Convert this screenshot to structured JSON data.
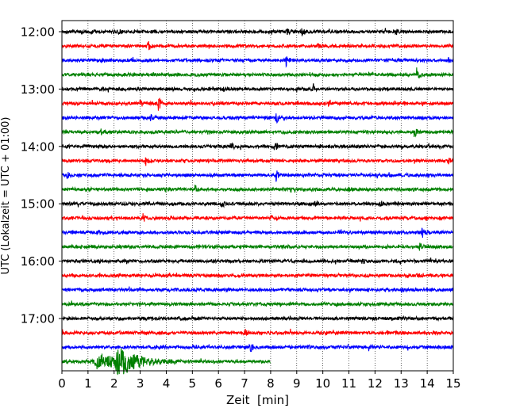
{
  "chart_data": {
    "type": "line",
    "title": "",
    "xlabel": "Zeit  [min]",
    "ylabel": "UTC (Lokalzeit = UTC + 01:00)",
    "xlim": [
      0,
      15
    ],
    "x_ticks": [
      "0",
      "1",
      "2",
      "3",
      "4",
      "5",
      "6",
      "7",
      "8",
      "9",
      "10",
      "11",
      "12",
      "13",
      "14",
      "15"
    ],
    "y_tick_labels": [
      "12:00",
      "13:00",
      "14:00",
      "15:00",
      "16:00",
      "17:00"
    ],
    "grid": "vertical dotted lines at each minute",
    "trace_colors": [
      "#000000",
      "#ff0000",
      "#0000ff",
      "#008000"
    ],
    "traces": [
      {
        "start": "12:00",
        "color": "#000000",
        "x_end": 15,
        "events": [
          {
            "x": 2.1,
            "amp": 0.5
          },
          {
            "x": 8.6,
            "amp": 0.6
          },
          {
            "x": 9.2,
            "amp": 0.45
          },
          {
            "x": 12.8,
            "amp": 0.35
          }
        ]
      },
      {
        "start": "12:15",
        "color": "#ff0000",
        "x_end": 15,
        "events": [
          {
            "x": 3.3,
            "amp": 0.7
          },
          {
            "x": 9.8,
            "amp": 0.3
          }
        ]
      },
      {
        "start": "12:30",
        "color": "#0000ff",
        "x_end": 15,
        "events": [
          {
            "x": 8.6,
            "amp": 0.9
          },
          {
            "x": 14.8,
            "amp": 0.3
          }
        ]
      },
      {
        "start": "12:45",
        "color": "#008000",
        "x_end": 15,
        "events": [
          {
            "x": 3.5,
            "amp": 0.3
          },
          {
            "x": 13.6,
            "amp": 0.9
          }
        ]
      },
      {
        "start": "13:00",
        "color": "#000000",
        "x_end": 15,
        "events": [
          {
            "x": 9.6,
            "amp": 0.5
          },
          {
            "x": 6.2,
            "amp": 0.3
          }
        ]
      },
      {
        "start": "13:15",
        "color": "#ff0000",
        "x_end": 15,
        "events": [
          {
            "x": 3.0,
            "amp": 0.5
          },
          {
            "x": 3.7,
            "amp": 0.9
          },
          {
            "x": 10.2,
            "amp": 0.3
          },
          {
            "x": 13.1,
            "amp": 0.3
          }
        ]
      },
      {
        "start": "13:30",
        "color": "#0000ff",
        "x_end": 15,
        "events": [
          {
            "x": 3.4,
            "amp": 0.5
          },
          {
            "x": 8.2,
            "amp": 0.8
          }
        ]
      },
      {
        "start": "13:45",
        "color": "#008000",
        "x_end": 15,
        "events": [
          {
            "x": 1.5,
            "amp": 0.3
          },
          {
            "x": 13.5,
            "amp": 0.8
          }
        ]
      },
      {
        "start": "14:00",
        "color": "#000000",
        "x_end": 15,
        "events": [
          {
            "x": 6.5,
            "amp": 0.35
          },
          {
            "x": 8.2,
            "amp": 0.5
          }
        ]
      },
      {
        "start": "14:15",
        "color": "#ff0000",
        "x_end": 15,
        "events": [
          {
            "x": 3.2,
            "amp": 0.7
          },
          {
            "x": 14.8,
            "amp": 0.4
          }
        ]
      },
      {
        "start": "14:30",
        "color": "#0000ff",
        "x_end": 15,
        "events": [
          {
            "x": 0.2,
            "amp": 0.4
          },
          {
            "x": 8.2,
            "amp": 0.8
          },
          {
            "x": 14.0,
            "amp": 0.4
          }
        ]
      },
      {
        "start": "14:45",
        "color": "#008000",
        "x_end": 15,
        "events": [
          {
            "x": 4.0,
            "amp": 0.4
          },
          {
            "x": 5.1,
            "amp": 0.7
          },
          {
            "x": 11.0,
            "amp": 0.3
          }
        ]
      },
      {
        "start": "15:00",
        "color": "#000000",
        "x_end": 15,
        "events": [
          {
            "x": 6.1,
            "amp": 0.6
          },
          {
            "x": 9.7,
            "amp": 0.4
          },
          {
            "x": 12.2,
            "amp": 0.3
          }
        ]
      },
      {
        "start": "15:15",
        "color": "#ff0000",
        "x_end": 15,
        "events": [
          {
            "x": 3.1,
            "amp": 0.6
          },
          {
            "x": 8.0,
            "amp": 0.3
          }
        ]
      },
      {
        "start": "15:30",
        "color": "#0000ff",
        "x_end": 15,
        "events": [
          {
            "x": 0.4,
            "amp": 0.3
          },
          {
            "x": 13.8,
            "amp": 0.9
          }
        ]
      },
      {
        "start": "15:45",
        "color": "#008000",
        "x_end": 15,
        "events": [
          {
            "x": 13.7,
            "amp": 0.6
          }
        ]
      },
      {
        "start": "16:00",
        "color": "#000000",
        "x_end": 15,
        "events": [
          {
            "x": 11.5,
            "amp": 0.3
          }
        ]
      },
      {
        "start": "16:15",
        "color": "#ff0000",
        "x_end": 15,
        "events": [
          {
            "x": 13.6,
            "amp": 0.3
          }
        ]
      },
      {
        "start": "16:30",
        "color": "#0000ff",
        "x_end": 15,
        "events": [
          {
            "x": 13.0,
            "amp": 0.25
          }
        ]
      },
      {
        "start": "16:45",
        "color": "#008000",
        "x_end": 15,
        "events": [
          {
            "x": 10.5,
            "amp": 0.2
          }
        ]
      },
      {
        "start": "17:00",
        "color": "#000000",
        "x_end": 15,
        "events": [
          {
            "x": 4.5,
            "amp": 0.2
          }
        ]
      },
      {
        "start": "17:15",
        "color": "#ff0000",
        "x_end": 15,
        "events": [
          {
            "x": 7.0,
            "amp": 0.5
          }
        ]
      },
      {
        "start": "17:30",
        "color": "#0000ff",
        "x_end": 15,
        "events": [
          {
            "x": 7.2,
            "amp": 1.0
          },
          {
            "x": 5.0,
            "amp": 0.2
          }
        ]
      },
      {
        "start": "17:45",
        "color": "#008000",
        "x_end": 8.0,
        "events": [
          {
            "x": 1.4,
            "amp": 1.2,
            "width": 0.9
          },
          {
            "x": 2.2,
            "amp": 1.8,
            "width": 1.0
          }
        ]
      }
    ]
  }
}
